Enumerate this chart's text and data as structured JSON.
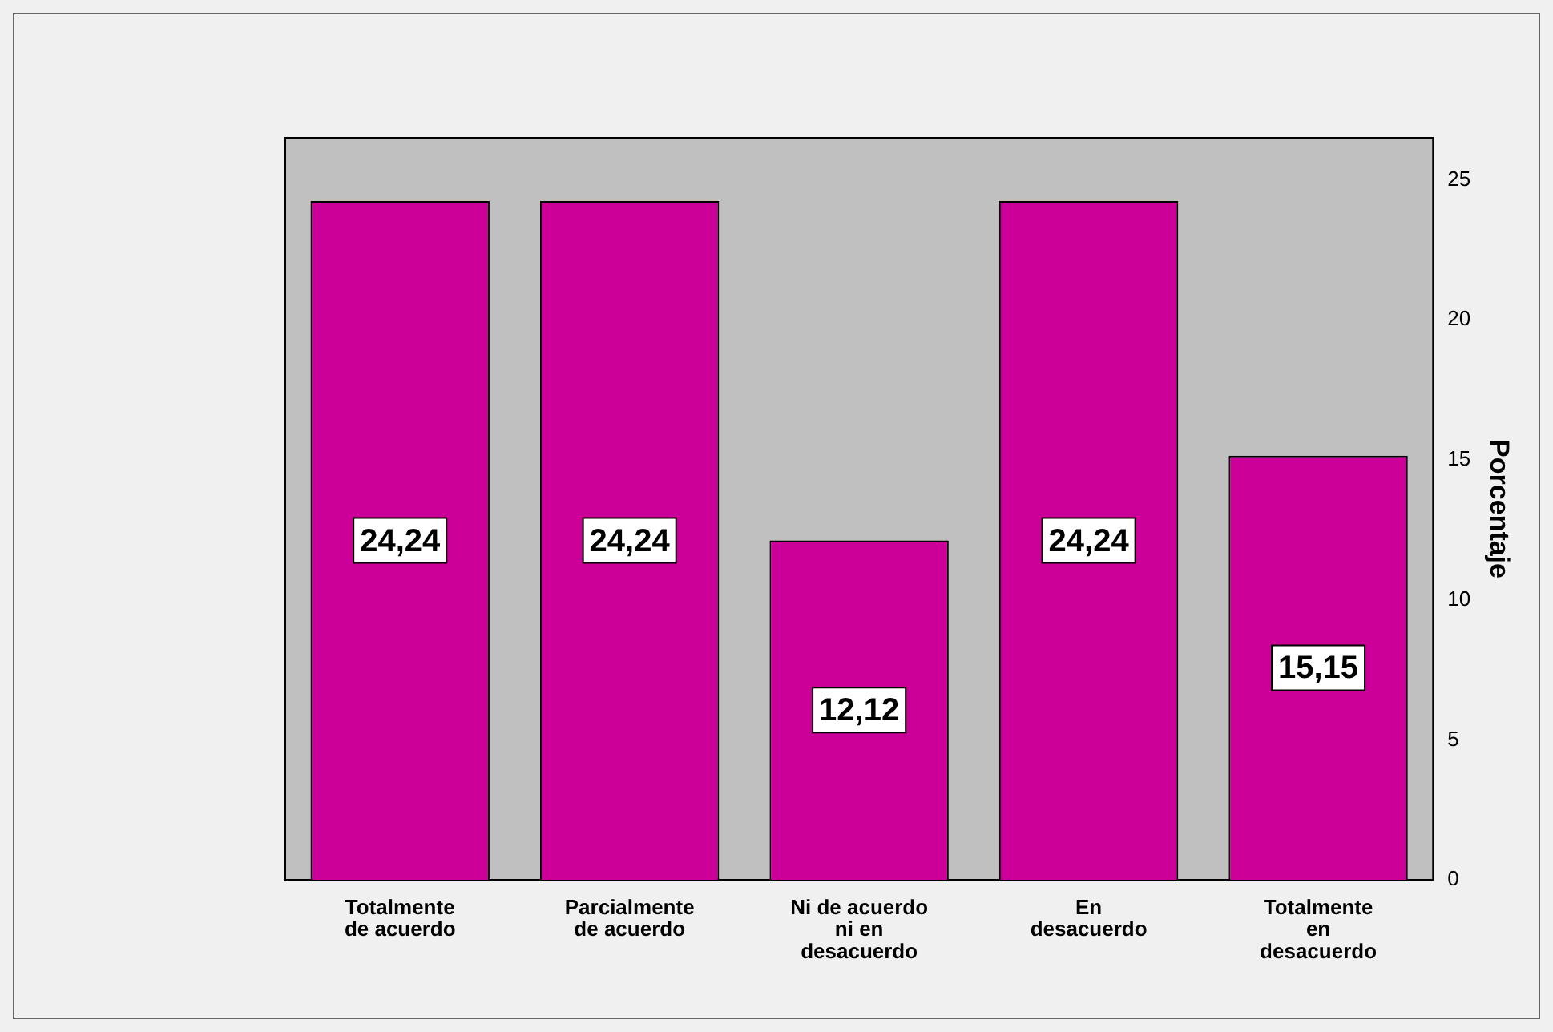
{
  "chart_data": {
    "type": "bar",
    "ylabel": "Porcentaje",
    "categories": [
      "Totalmente\nde acuerdo",
      "Parcialmente\nde acuerdo",
      "Ni de acuerdo\nni en\ndesacuerdo",
      "En\ndesacuerdo",
      "Totalmente\nen\ndesacuerdo"
    ],
    "values": [
      24.24,
      24.24,
      12.12,
      24.24,
      15.15
    ],
    "value_labels": [
      "24,24",
      "24,24",
      "12,12",
      "24,24",
      "15,15"
    ],
    "color": "#cc0099",
    "ylim": [
      0,
      26.5
    ],
    "yticks": [
      0,
      5,
      10,
      15,
      20,
      25
    ],
    "grid": false,
    "legend": false
  }
}
